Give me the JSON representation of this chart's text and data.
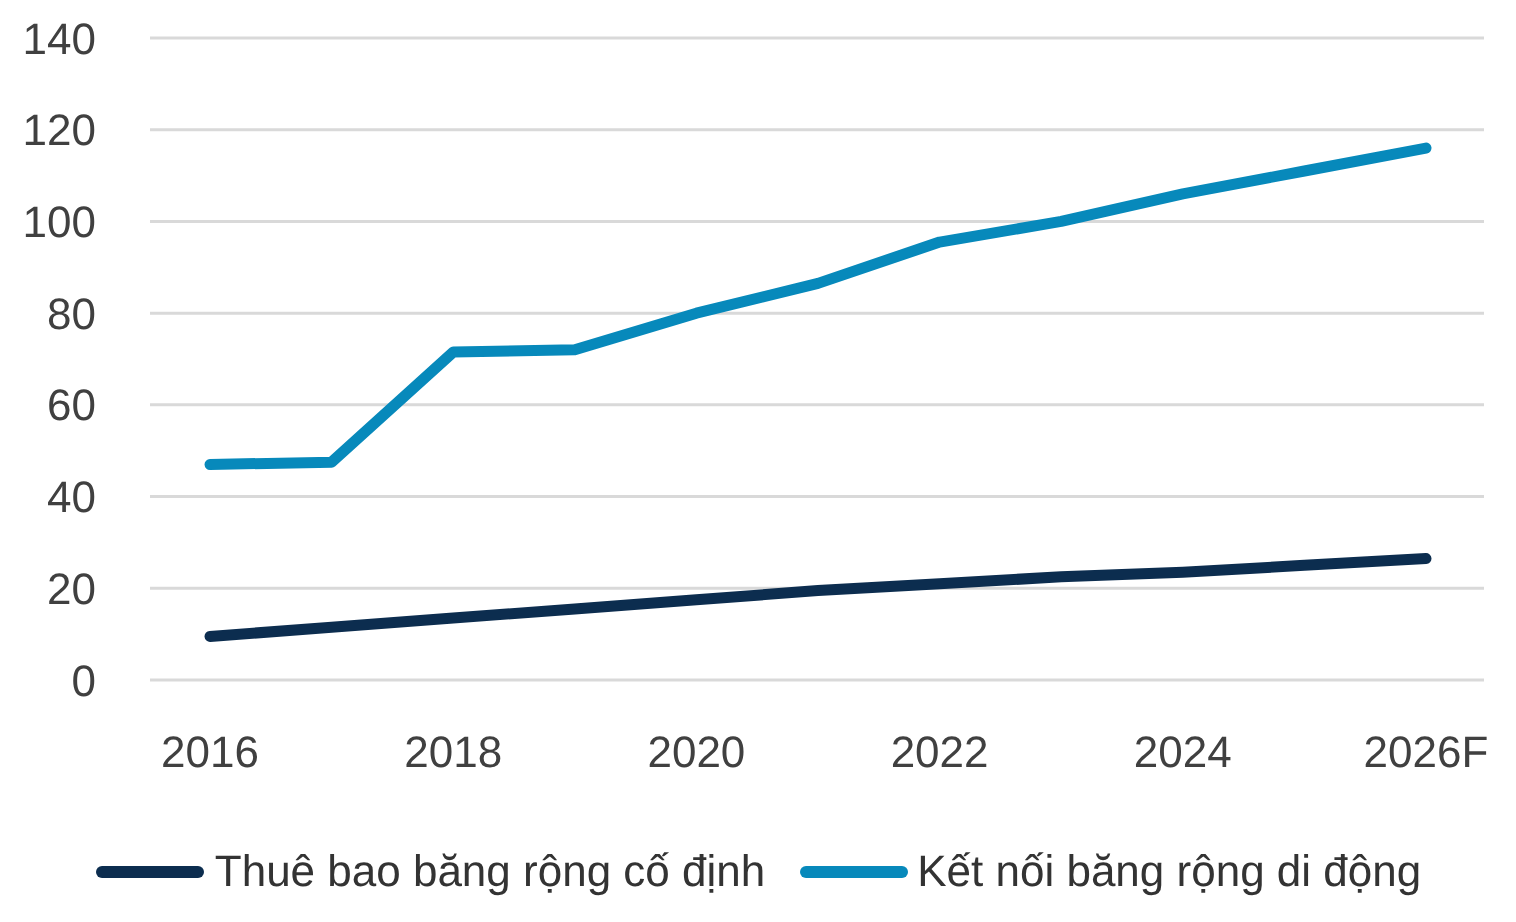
{
  "chart_data": {
    "type": "line",
    "categories": [
      "2016",
      null,
      "2018",
      null,
      "2020",
      null,
      "2022",
      null,
      "2024",
      null,
      "2026F"
    ],
    "series": [
      {
        "name": "Thuê bao băng rộng cố định",
        "color": "#0c2d4f",
        "values": [
          9.5,
          11.5,
          13.5,
          15.5,
          17.5,
          19.5,
          21,
          22.5,
          23.5,
          25,
          26.5
        ]
      },
      {
        "name": "Kết nối băng rộng di động",
        "color": "#0789bb",
        "values": [
          47,
          47.5,
          71.5,
          72,
          80,
          86.5,
          95.5,
          100,
          106,
          111,
          116
        ]
      }
    ],
    "ylim": [
      0,
      140
    ],
    "yticks": [
      0,
      20,
      40,
      60,
      80,
      100,
      120,
      140
    ],
    "grid": "y",
    "legend": "bottom",
    "line_style": "solid"
  }
}
